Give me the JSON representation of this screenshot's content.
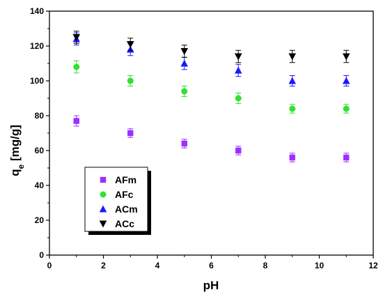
{
  "chart_data": {
    "type": "scatter",
    "xlabel": "pH",
    "ylabel": {
      "main": "q",
      "sub": "e",
      "rest": " [mg/g]"
    },
    "xlim": [
      0,
      12
    ],
    "ylim": [
      0,
      140
    ],
    "xticks": [
      0,
      2,
      4,
      6,
      8,
      10,
      12
    ],
    "yticks": [
      0,
      20,
      40,
      60,
      80,
      100,
      120,
      140
    ],
    "grid": false,
    "legend_position": "lower-left",
    "x": [
      1,
      3,
      5,
      7,
      9,
      11
    ],
    "series": [
      {
        "name": "AFm",
        "marker": "square",
        "color": "#9b30ff",
        "values": [
          77,
          70,
          64,
          60,
          56,
          56
        ],
        "errors": [
          3,
          2.5,
          2.5,
          2.5,
          2.5,
          2.5
        ]
      },
      {
        "name": "AFc",
        "marker": "circle",
        "color": "#33e033",
        "values": [
          108,
          100,
          94,
          90,
          84,
          84
        ],
        "errors": [
          3.5,
          3,
          3,
          3,
          2.5,
          2.5
        ]
      },
      {
        "name": "ACm",
        "marker": "triangle-up",
        "color": "#1a1aff",
        "values": [
          124,
          118,
          110,
          106,
          100,
          100
        ],
        "errors": [
          3.5,
          3.5,
          3.5,
          3.5,
          3,
          3
        ]
      },
      {
        "name": "ACc",
        "marker": "triangle-down",
        "color": "#000000",
        "values": [
          125,
          121,
          117,
          114,
          114,
          114
        ],
        "errors": [
          3.5,
          3.5,
          3.5,
          3.5,
          3.5,
          3.5
        ]
      }
    ]
  }
}
